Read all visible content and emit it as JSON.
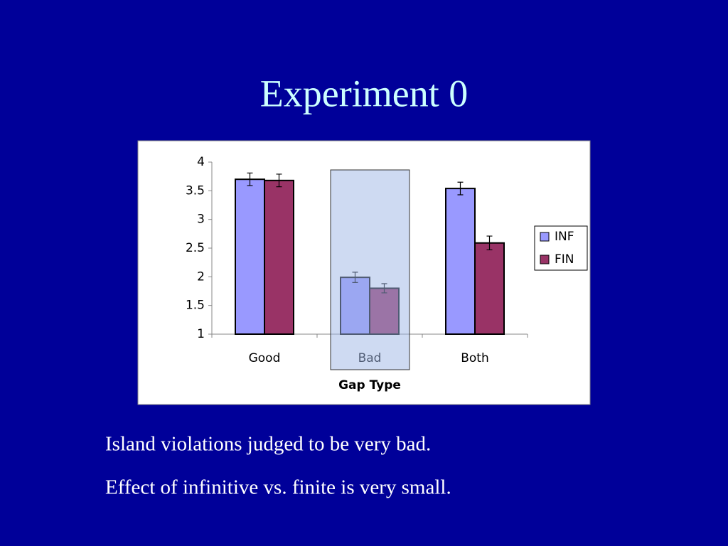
{
  "slide": {
    "title": "Experiment 0",
    "lines": [
      "Island violations judged to be very bad.",
      "Effect of infinitive vs. finite is very small."
    ]
  },
  "chart_data": {
    "type": "bar",
    "xlabel": "Gap Type",
    "categories": [
      "Good",
      "Bad",
      "Both"
    ],
    "series": [
      {
        "name": "INF",
        "color": "#9999ff",
        "values": [
          3.7,
          1.99,
          3.54
        ],
        "errors": [
          0.11,
          0.09,
          0.11
        ]
      },
      {
        "name": "FIN",
        "color": "#993366",
        "values": [
          3.68,
          1.8,
          2.59
        ],
        "errors": [
          0.11,
          0.08,
          0.12
        ]
      }
    ],
    "ylim": [
      1,
      4
    ],
    "yticks": [
      1,
      1.5,
      2,
      2.5,
      3,
      3.5,
      4
    ],
    "grid": false,
    "legend": "right"
  }
}
